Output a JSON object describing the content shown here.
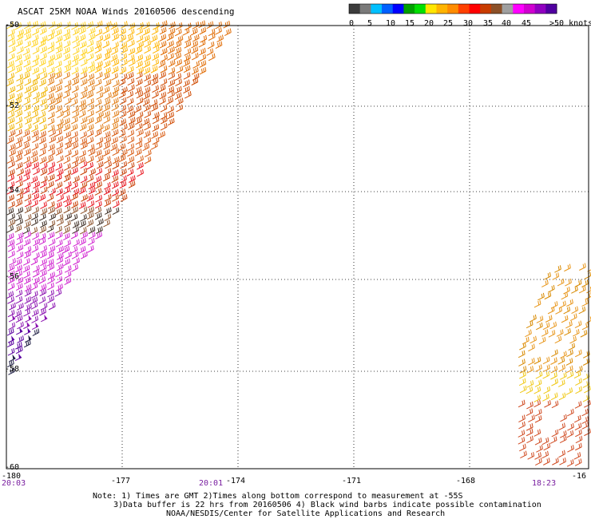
{
  "title": "ASCAT 25KM NOAA Winds 20160506 descending",
  "legend": {
    "colors": [
      "#3c3c3c",
      "#7a7a7a",
      "#00c0ff",
      "#0060ff",
      "#0000ff",
      "#00a000",
      "#00e000",
      "#ffe600",
      "#ffb400",
      "#ff8c00",
      "#ff4000",
      "#ff0000",
      "#c83c00",
      "#8c5028",
      "#a0a0a0",
      "#ff00ff",
      "#d000d0",
      "#9000c0",
      "#5000a0"
    ],
    "labels": [
      "0",
      "5",
      "10",
      "15",
      "20",
      "25",
      "30",
      "35",
      "40",
      "45",
      ">50 knots"
    ]
  },
  "axes": {
    "x_ticks": [
      "-180",
      "-177",
      "-174",
      "-171",
      "-168",
      "-16"
    ],
    "y_ticks": [
      "-50",
      "-52",
      "-54",
      "-56",
      "-58",
      "-60"
    ]
  },
  "times": [
    "20:03",
    "20:01",
    "18:23"
  ],
  "notes": [
    "Note: 1) Times are GMT 2)Times along bottom correspond to measurement at -55S",
    "3)Data buffer is 22 hrs from 20160506 4) Black wind barbs indicate possible contamination",
    "NOAA/NESDIS/Center for Satellite Applications and Research"
  ]
}
